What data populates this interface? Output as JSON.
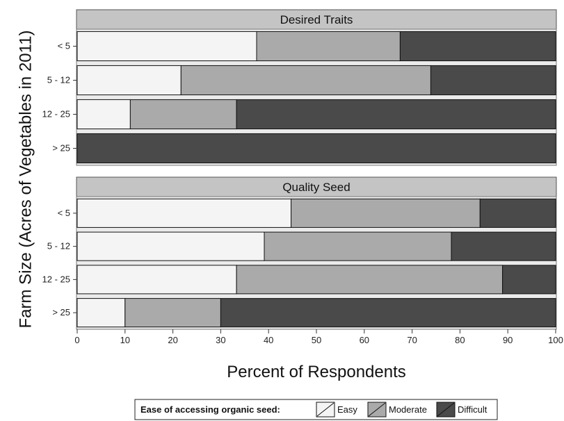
{
  "chart_data": {
    "type": "bar",
    "orientation": "horizontal",
    "stacked": true,
    "xlabel": "Percent of Respondents",
    "ylabel": "Farm Size (Acres of Vegetables in 2011)",
    "xlim": [
      0,
      100
    ],
    "xticks": [
      0,
      10,
      20,
      30,
      40,
      50,
      60,
      70,
      80,
      90,
      100
    ],
    "grid": false,
    "legend": {
      "title": "Ease of accessing organic seed:",
      "position": "bottom",
      "entries": [
        "Easy",
        "Moderate",
        "Difficult"
      ]
    },
    "categories": [
      "< 5",
      "5 - 12",
      "12 - 25",
      "> 25"
    ],
    "colors": {
      "Easy": "#f4f4f4",
      "Moderate": "#aaaaaa",
      "Difficult": "#4a4a4a"
    },
    "panels": [
      {
        "title": "Desired Traits",
        "series": [
          {
            "name": "Easy",
            "values": [
              37.5,
              21.7,
              11.1,
              0
            ]
          },
          {
            "name": "Moderate",
            "values": [
              30.0,
              52.2,
              22.2,
              0
            ]
          },
          {
            "name": "Difficult",
            "values": [
              32.5,
              26.1,
              66.7,
              100
            ]
          }
        ]
      },
      {
        "title": "Quality Seed",
        "series": [
          {
            "name": "Easy",
            "values": [
              44.7,
              39.1,
              33.3,
              10
            ]
          },
          {
            "name": "Moderate",
            "values": [
              39.5,
              39.1,
              55.6,
              20
            ]
          },
          {
            "name": "Difficult",
            "values": [
              15.8,
              21.8,
              11.1,
              70
            ]
          }
        ]
      }
    ]
  }
}
